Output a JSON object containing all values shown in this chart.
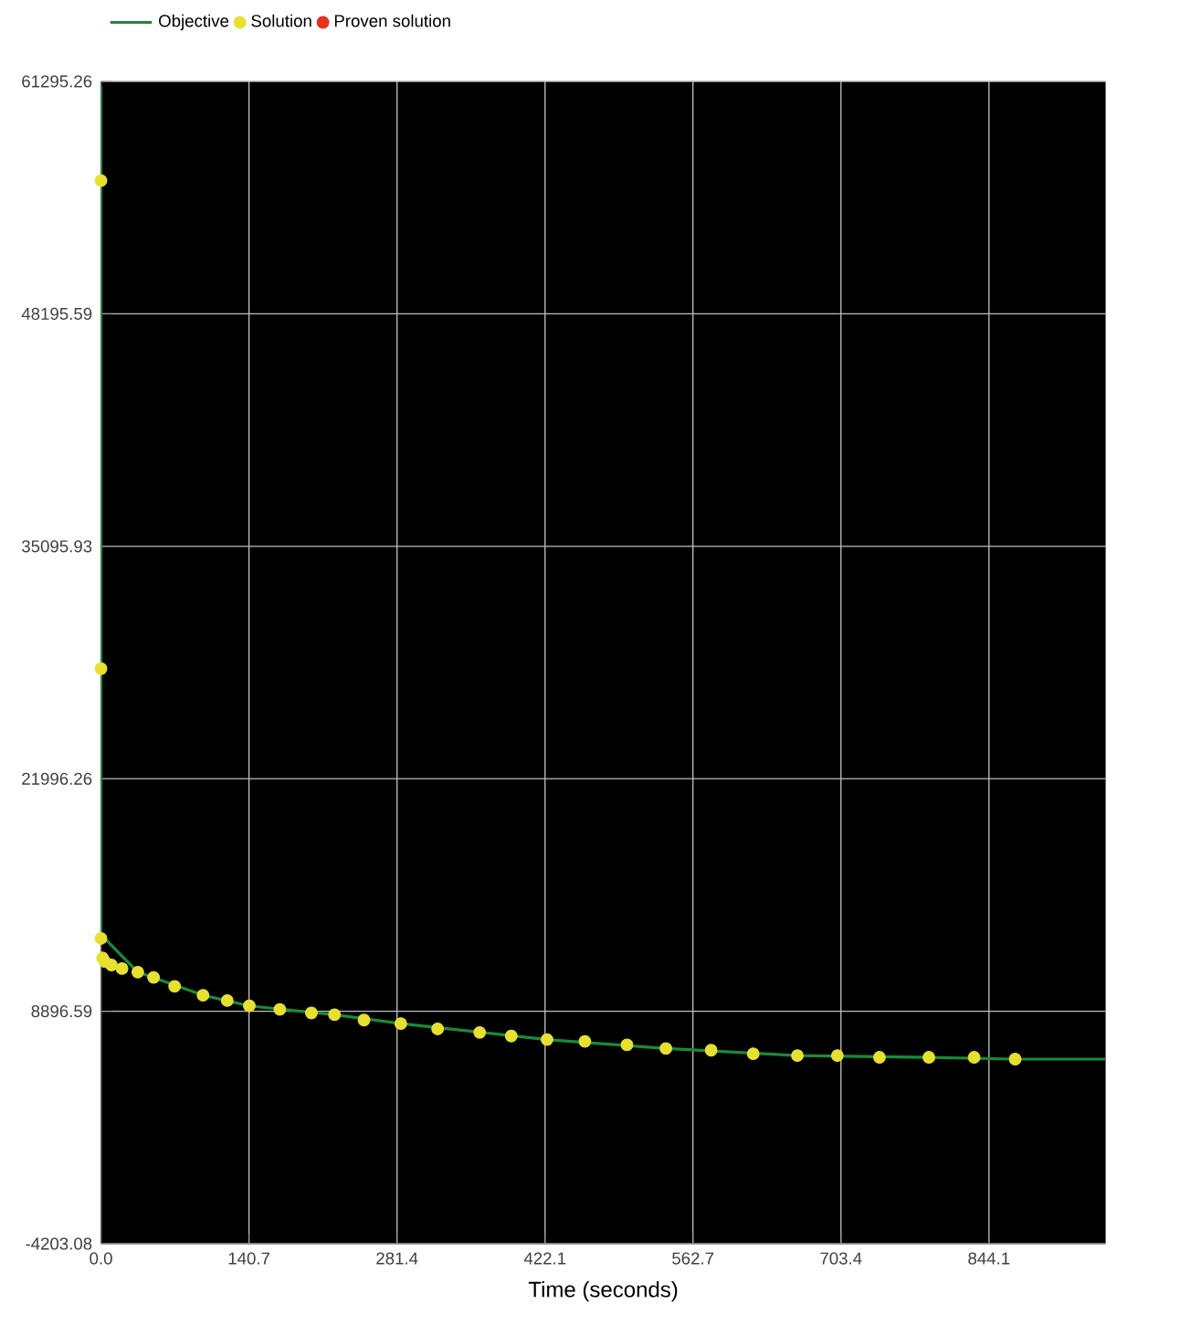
{
  "chart_data": {
    "type": "line",
    "xlabel": "Time (seconds)",
    "legend": "top",
    "grid": true,
    "xlim": [
      0,
      955
    ],
    "ylim": [
      -4203.08,
      61295.26
    ],
    "xticks": [
      {
        "value": 0,
        "label": "0.0"
      },
      140.7,
      281.4,
      422.1,
      562.7,
      703.4,
      844.1
    ],
    "yticks": [
      -4203.08,
      8896.59,
      21996.26,
      35095.93,
      48195.59,
      61295.26
    ],
    "series": [
      {
        "name": "Objective",
        "color": "#1a8a3a",
        "x": [
          0,
          0,
          3.5,
          35,
          97,
          141,
          222,
          285,
          424,
          537,
          662,
          787,
          869,
          955
        ],
        "values": [
          61000,
          13000,
          13000,
          11100,
          9800,
          9200,
          8700,
          8200,
          7300,
          6800,
          6400,
          6300,
          6200,
          6200
        ]
      },
      {
        "name": "Solution",
        "type": "scatter",
        "color": "#e8e030",
        "x": [
          0,
          0,
          0,
          1.5,
          3.5,
          10,
          20,
          35,
          50,
          70,
          97,
          120,
          141,
          170,
          200,
          222,
          250,
          285,
          320,
          360,
          390,
          424,
          460,
          500,
          537,
          580,
          620,
          662,
          700,
          740,
          787,
          830,
          869
        ],
        "values": [
          55700,
          28200,
          13000,
          11900,
          11700,
          11500,
          11300,
          11100,
          10800,
          10300,
          9800,
          9500,
          9200,
          9000,
          8800,
          8700,
          8400,
          8200,
          7900,
          7700,
          7500,
          7300,
          7200,
          7000,
          6800,
          6700,
          6500,
          6400,
          6400,
          6300,
          6300,
          6300,
          6200
        ]
      },
      {
        "name": "Proven solution",
        "type": "scatter",
        "color": "#e83020"
      }
    ]
  }
}
